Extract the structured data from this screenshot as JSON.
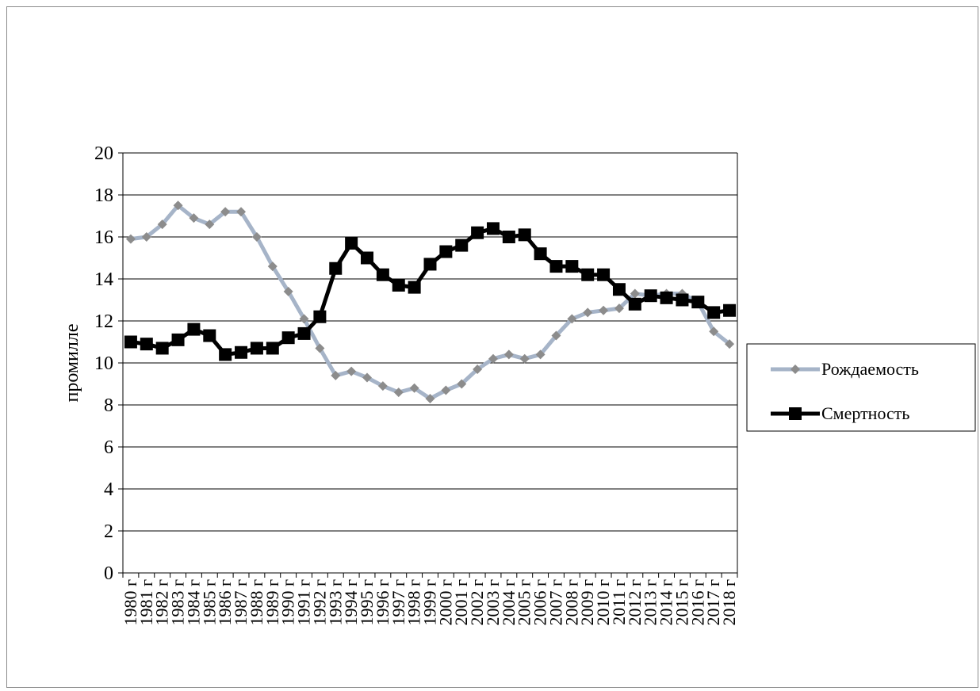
{
  "chart_data": {
    "type": "line",
    "title": "",
    "xlabel": "",
    "ylabel": "промилле",
    "ylim": [
      0,
      20
    ],
    "ytick_step": 2,
    "grid": true,
    "legend_position": "right",
    "categories": [
      "1980 г",
      "1981 г",
      "1982 г",
      "1983 г",
      "1984 г",
      "1985 г",
      "1986 г",
      "1987 г",
      "1988 г",
      "1989 г",
      "1990 г",
      "1991 г",
      "1992 г",
      "1993 г",
      "1994 г",
      "1995 г",
      "1996 г",
      "1997 г",
      "1998 г",
      "1999 г",
      "2000 г",
      "2001 г",
      "2002 г",
      "2003 г",
      "2004 г",
      "2005 г",
      "2006 г",
      "2007 г",
      "2008 г",
      "2009 г",
      "2010 г",
      "2011 г",
      "2012 г",
      "2013 г",
      "2014 г",
      "2015 г",
      "2016 г",
      "2017 г",
      "2018 г"
    ],
    "series": [
      {
        "name": "Рождаемость",
        "color": "#a6b4c8",
        "marker_color": "#8c8c8c",
        "marker": "diamond",
        "values": [
          15.9,
          16.0,
          16.6,
          17.5,
          16.9,
          16.6,
          17.2,
          17.2,
          16.0,
          14.6,
          13.4,
          12.1,
          10.7,
          9.4,
          9.6,
          9.3,
          8.9,
          8.6,
          8.8,
          8.3,
          8.7,
          9.0,
          9.7,
          10.2,
          10.4,
          10.2,
          10.4,
          11.3,
          12.1,
          12.4,
          12.5,
          12.6,
          13.3,
          13.2,
          13.3,
          13.3,
          12.9,
          11.5,
          10.9
        ]
      },
      {
        "name": "Смертность",
        "color": "#000000",
        "marker_color": "#000000",
        "marker": "square",
        "values": [
          11.0,
          10.9,
          10.7,
          11.1,
          11.6,
          11.3,
          10.4,
          10.5,
          10.7,
          10.7,
          11.2,
          11.4,
          12.2,
          14.5,
          15.7,
          15.0,
          14.2,
          13.7,
          13.6,
          14.7,
          15.3,
          15.6,
          16.2,
          16.4,
          16.0,
          16.1,
          15.2,
          14.6,
          14.6,
          14.2,
          14.2,
          13.5,
          12.8,
          13.2,
          13.1,
          13.0,
          12.9,
          12.4,
          12.5
        ]
      }
    ]
  }
}
